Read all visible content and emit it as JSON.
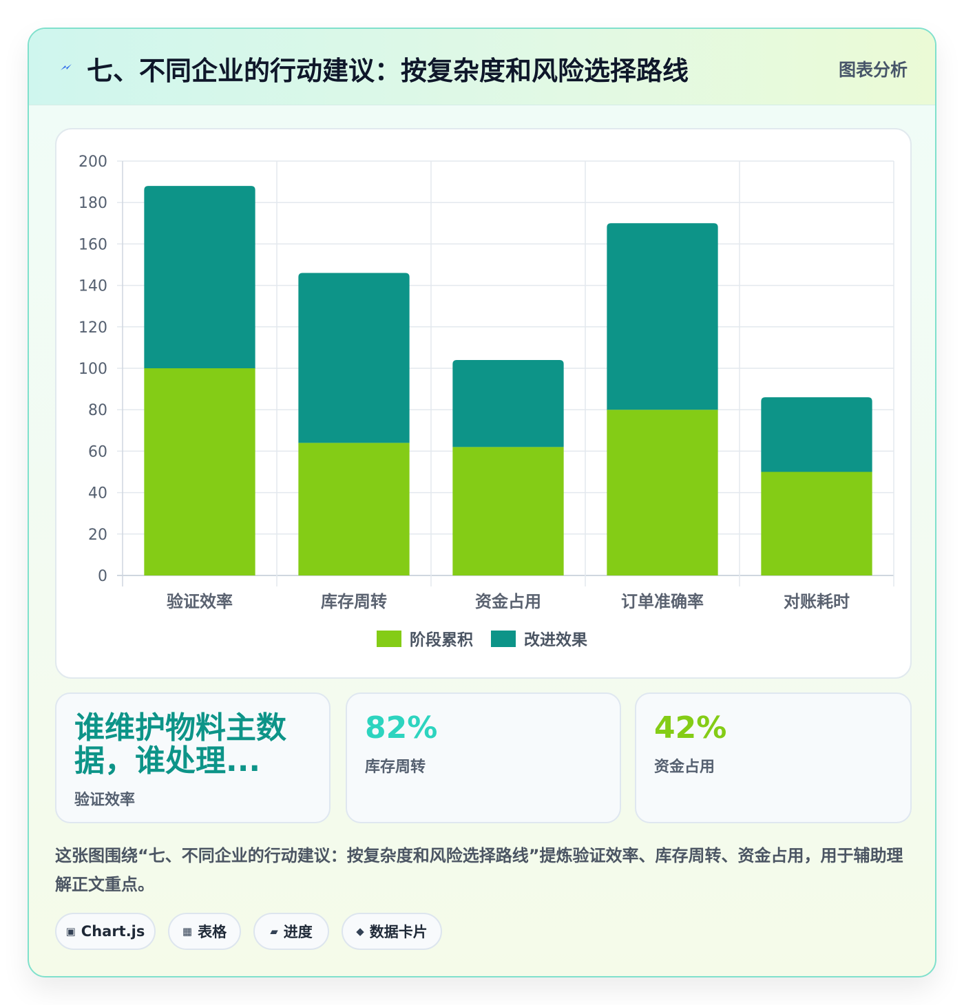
{
  "header": {
    "title": "七、不同企业的行动建议：按复杂度和风险选择路线",
    "tag": "图表分析",
    "icon": "lightning-icon"
  },
  "chart_data": {
    "type": "bar",
    "stacked": true,
    "categories": [
      "验证效率",
      "库存周转",
      "资金占用",
      "订单准确率",
      "对账耗时"
    ],
    "series": [
      {
        "name": "阶段累积",
        "values": [
          100,
          64,
          62,
          80,
          50
        ],
        "color": "#84cc16"
      },
      {
        "name": "改进效果",
        "values": [
          88,
          82,
          42,
          90,
          36
        ],
        "color": "#0d9488"
      }
    ],
    "ylim": [
      0,
      200
    ],
    "yticks": [
      0,
      20,
      40,
      60,
      80,
      100,
      120,
      140,
      160,
      180,
      200
    ],
    "grid": true,
    "legend_position": "bottom"
  },
  "stats": [
    {
      "value": "谁维护物料主数据，谁处理...",
      "label": "验证效率",
      "color": "#0d9488"
    },
    {
      "value": "82%",
      "label": "库存周转",
      "color": "#2dd4bf"
    },
    {
      "value": "42%",
      "label": "资金占用",
      "color": "#84cc16"
    }
  ],
  "description": "这张图围绕“七、不同企业的行动建议：按复杂度和风险选择路线”提炼验证效率、库存周转、资金占用，用于辅助理解正文重点。",
  "chips": [
    {
      "icon": "▣",
      "label": "Chart.js"
    },
    {
      "icon": "▦",
      "label": "表格"
    },
    {
      "icon": "▰",
      "label": "进度"
    },
    {
      "icon": "◆",
      "label": "数据卡片"
    }
  ]
}
